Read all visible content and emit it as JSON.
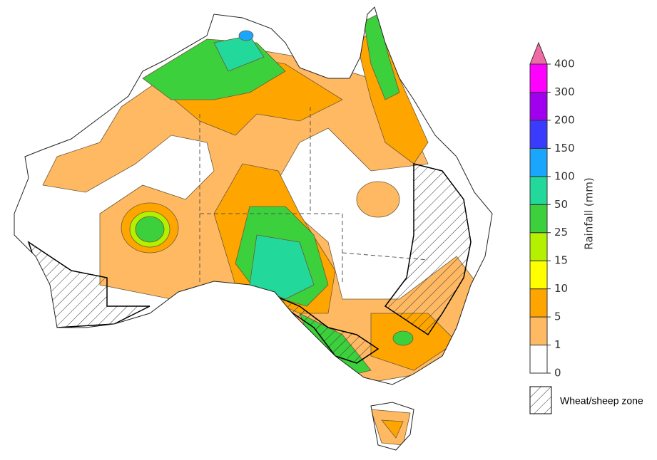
{
  "legend": {
    "title": "Rainfall (mm)",
    "ticks": [
      0,
      1,
      5,
      10,
      15,
      25,
      50,
      100,
      150,
      200,
      300,
      400
    ],
    "colors": [
      "#ffffff",
      "#ffb962",
      "#ffa500",
      "#ffff00",
      "#b4f000",
      "#3cd03c",
      "#22d89a",
      "#1aa6ff",
      "#3b3bff",
      "#a000ee",
      "#ff00ff"
    ],
    "extend_color": "#f06aa8"
  },
  "zone_label": "Wheat/sheep zone"
}
